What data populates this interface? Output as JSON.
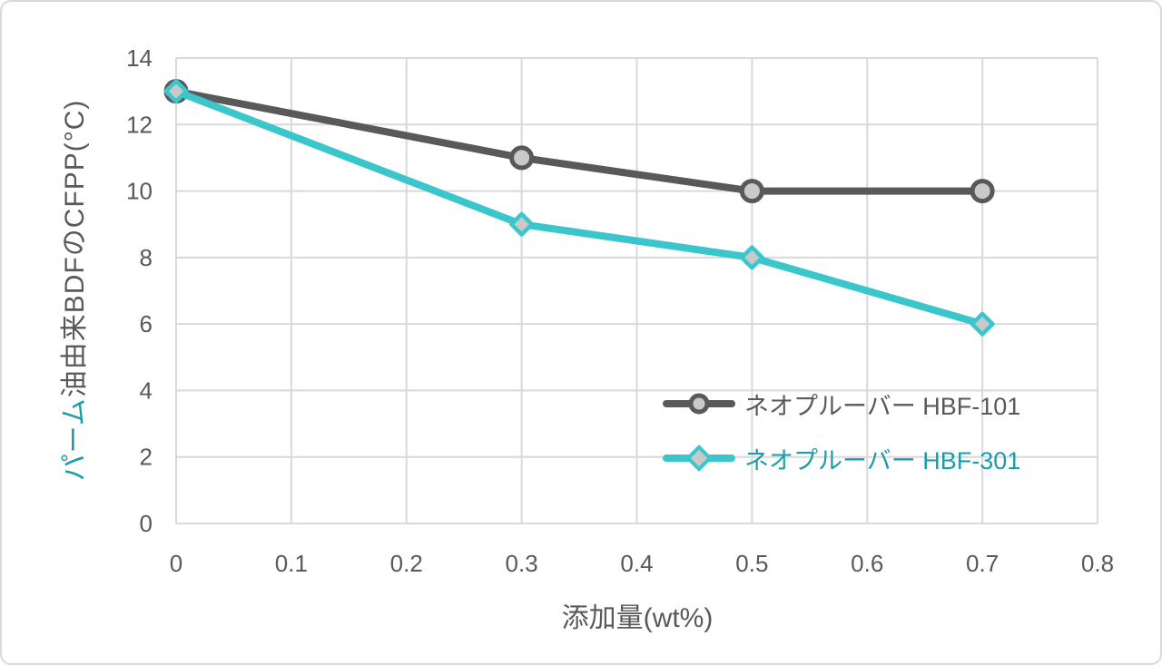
{
  "chart_data": {
    "type": "line",
    "x": [
      0,
      0.3,
      0.5,
      0.7
    ],
    "series": [
      {
        "name": "ネオプルーバー HBF-101",
        "values": [
          13,
          11,
          10,
          10
        ],
        "color": "#595959",
        "marker": "circle",
        "label_color": "#595959"
      },
      {
        "name": "ネオプルーバー HBF-301",
        "values": [
          13,
          9,
          8,
          6
        ],
        "color": "#3bc6cc",
        "marker": "diamond",
        "label_color": "#1d9da7"
      }
    ],
    "marker_fill": "#c9c9c9",
    "xlabel": "添加量(wt%)",
    "ylabel_highlight": "パーム",
    "ylabel_rest": "油由来BDFのCFPP(°C)",
    "xlim": [
      0,
      0.8
    ],
    "ylim": [
      0,
      14
    ],
    "x_ticks": [
      0,
      0.1,
      0.2,
      0.3,
      0.4,
      0.5,
      0.6,
      0.7,
      0.8
    ],
    "x_tick_labels": [
      "0",
      "0.1",
      "0.2",
      "0.3",
      "0.4",
      "0.5",
      "0.6",
      "0.7",
      "0.8"
    ],
    "y_ticks": [
      0,
      2,
      4,
      6,
      8,
      10,
      12,
      14
    ],
    "y_tick_labels": [
      "0",
      "2",
      "4",
      "6",
      "8",
      "10",
      "12",
      "14"
    ],
    "grid": true,
    "legend_position": "inside-right"
  },
  "colors": {
    "background": "#ffffff",
    "card_border": "#d9d9d9",
    "gridline": "#d9d9d9",
    "tick_text": "#595959",
    "axis_title_text": "#595959",
    "ylabel_highlight_color": "#1d9da7"
  }
}
